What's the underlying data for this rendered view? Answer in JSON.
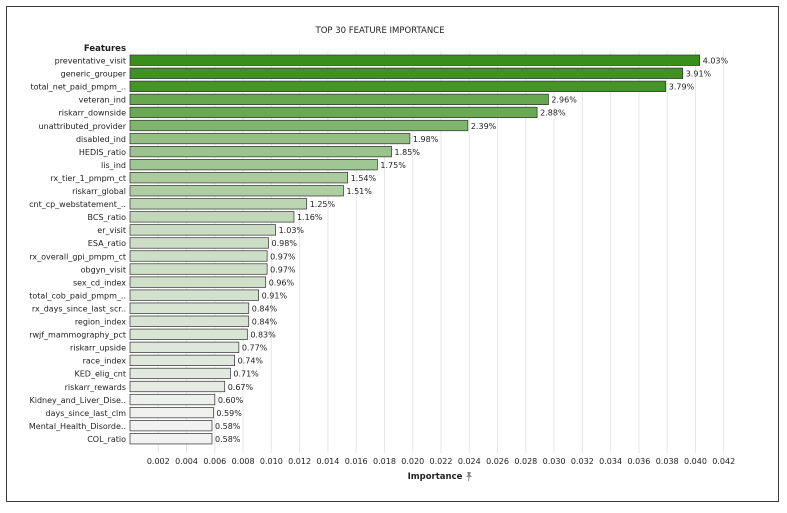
{
  "chart_data": {
    "type": "bar",
    "orientation": "horizontal",
    "title": "TOP 30 FEATURE IMPORTANCE",
    "category_header": "Features",
    "xlabel": "Importance",
    "xlabel_icon": "pin-icon",
    "xlim": [
      0,
      0.044
    ],
    "xticks": [
      "0.002",
      "0.004",
      "0.006",
      "0.008",
      "0.010",
      "0.012",
      "0.014",
      "0.016",
      "0.018",
      "0.020",
      "0.022",
      "0.024",
      "0.026",
      "0.028",
      "0.030",
      "0.032",
      "0.034",
      "0.036",
      "0.038",
      "0.040",
      "0.042"
    ],
    "grid": true,
    "categories": [
      "preventative_visit",
      "generic_grouper",
      "total_net_paid_pmpm_..",
      "veteran_ind",
      "riskarr_downside",
      "unattributed_provider",
      "disabled_ind",
      "HEDIS_ratio",
      "lis_ind",
      "rx_tier_1_pmpm_ct",
      "riskarr_global",
      "cnt_cp_webstatement_..",
      "BCS_ratio",
      "er_visit",
      "ESA_ratio",
      "rx_overall_gpi_pmpm_ct",
      "obgyn_visit",
      "sex_cd_index",
      "total_cob_paid_pmpm_..",
      "rx_days_since_last_scr..",
      "region_index",
      "rwjf_mammography_pct",
      "riskarr_upside",
      "race_index",
      "KED_elig_cnt",
      "riskarr_rewards",
      "Kidney_and_Liver_Dise..",
      "days_since_last_clm",
      "Mental_Health_Disorde..",
      "COL_ratio"
    ],
    "values": [
      0.0403,
      0.0391,
      0.0379,
      0.0296,
      0.0288,
      0.0239,
      0.0198,
      0.0185,
      0.0175,
      0.0154,
      0.0151,
      0.0125,
      0.0116,
      0.0103,
      0.0098,
      0.0097,
      0.0097,
      0.0096,
      0.0091,
      0.0084,
      0.0084,
      0.0083,
      0.0077,
      0.0074,
      0.0071,
      0.0067,
      0.006,
      0.0059,
      0.0058,
      0.0058
    ],
    "value_labels": [
      "4.03%",
      "3.91%",
      "3.79%",
      "2.96%",
      "2.88%",
      "2.39%",
      "1.98%",
      "1.85%",
      "1.75%",
      "1.54%",
      "1.51%",
      "1.25%",
      "1.16%",
      "1.03%",
      "0.98%",
      "0.97%",
      "0.97%",
      "0.96%",
      "0.91%",
      "0.84%",
      "0.84%",
      "0.83%",
      "0.77%",
      "0.74%",
      "0.71%",
      "0.67%",
      "0.60%",
      "0.59%",
      "0.58%",
      "0.58%"
    ],
    "colors": {
      "bar_low": "#f2f2f2",
      "bar_high": "#3a8f1c",
      "bar_stroke": "#2f2f2f",
      "grid": "#e6e6e6"
    }
  }
}
